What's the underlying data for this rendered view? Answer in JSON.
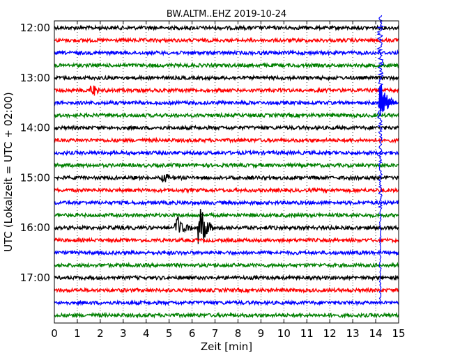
{
  "chart_data": {
    "type": "line",
    "title": "BW.ALTM..EHZ 2019-10-24",
    "xlabel": "Zeit  [min]",
    "ylabel": "UTC (Lokalzeit = UTC + 02:00)",
    "xlim": [
      0,
      15
    ],
    "x_ticks": [
      "0",
      "1",
      "2",
      "3",
      "4",
      "5",
      "6",
      "7",
      "8",
      "9",
      "10",
      "11",
      "12",
      "13",
      "14",
      "15"
    ],
    "y_ticks": [
      "12:00",
      "13:00",
      "14:00",
      "15:00",
      "16:00",
      "17:00"
    ],
    "grid": "vertical dotted",
    "line_interval_minutes": 15,
    "color_cycle": [
      "#000000",
      "#ff0000",
      "#0000ff",
      "#008000"
    ],
    "series": [
      {
        "start": "12:00",
        "color": "#000000"
      },
      {
        "start": "12:15",
        "color": "#ff0000"
      },
      {
        "start": "12:30",
        "color": "#0000ff"
      },
      {
        "start": "12:45",
        "color": "#008000"
      },
      {
        "start": "13:00",
        "color": "#000000"
      },
      {
        "start": "13:15",
        "color": "#ff0000"
      },
      {
        "start": "13:30",
        "color": "#0000ff"
      },
      {
        "start": "13:45",
        "color": "#008000"
      },
      {
        "start": "14:00",
        "color": "#000000"
      },
      {
        "start": "14:15",
        "color": "#ff0000"
      },
      {
        "start": "14:30",
        "color": "#0000ff"
      },
      {
        "start": "14:45",
        "color": "#008000"
      },
      {
        "start": "15:00",
        "color": "#000000"
      },
      {
        "start": "15:15",
        "color": "#ff0000"
      },
      {
        "start": "15:30",
        "color": "#0000ff"
      },
      {
        "start": "15:45",
        "color": "#008000"
      },
      {
        "start": "16:00",
        "color": "#000000"
      },
      {
        "start": "16:15",
        "color": "#ff0000"
      },
      {
        "start": "16:30",
        "color": "#0000ff"
      },
      {
        "start": "16:45",
        "color": "#008000"
      },
      {
        "start": "17:00",
        "color": "#000000"
      },
      {
        "start": "17:15",
        "color": "#ff0000"
      },
      {
        "start": "17:30",
        "color": "#0000ff"
      },
      {
        "start": "17:45",
        "color": "#008000"
      }
    ],
    "events": [
      {
        "line": "13:15",
        "minute": 1.6,
        "amplitude": 0.25
      },
      {
        "line": "15:00",
        "minute": 4.7,
        "amplitude": 0.2
      },
      {
        "line": "16:00",
        "minute": 5.3,
        "amplitude": 0.7
      },
      {
        "line": "16:00",
        "minute": 6.3,
        "amplitude": 1.0
      },
      {
        "line": "13:30",
        "minute": 14.2,
        "amplitude": 0.9
      }
    ]
  }
}
